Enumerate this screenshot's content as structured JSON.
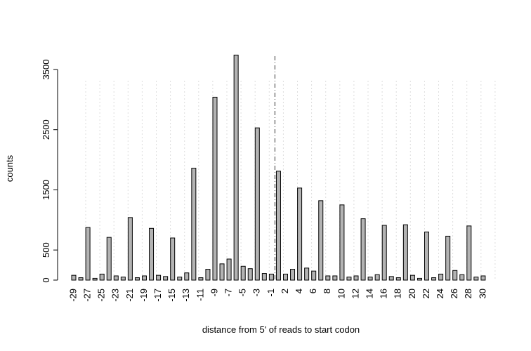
{
  "chart_data": {
    "type": "bar",
    "xlabel": "distance from 5' of reads to start codon",
    "ylabel": "counts",
    "categories": [
      "-29",
      null,
      "-27",
      null,
      "-25",
      null,
      "-23",
      null,
      "-21",
      null,
      "-19",
      null,
      "-17",
      null,
      "-15",
      null,
      "-13",
      null,
      "-11",
      null,
      "-9",
      null,
      "-7",
      null,
      "-5",
      null,
      "-3",
      null,
      "-1",
      null,
      "2",
      null,
      "4",
      null,
      "6",
      null,
      "8",
      null,
      "10",
      null,
      "12",
      null,
      "14",
      null,
      "16",
      null,
      "18",
      null,
      "20",
      null,
      "22",
      null,
      "24",
      null,
      "26",
      null,
      "28",
      null,
      "30"
    ],
    "values": [
      80,
      40,
      875,
      30,
      100,
      710,
      70,
      50,
      1040,
      40,
      70,
      860,
      80,
      60,
      700,
      50,
      120,
      1860,
      40,
      180,
      3040,
      270,
      350,
      3740,
      230,
      190,
      2530,
      110,
      100,
      1810,
      100,
      180,
      1530,
      200,
      150,
      1320,
      70,
      70,
      1250,
      50,
      70,
      1020,
      50,
      90,
      910,
      60,
      40,
      920,
      80,
      30,
      800,
      40,
      100,
      730,
      160,
      90,
      900,
      50,
      70
    ],
    "color": "#b3b3b3",
    "ylim": [
      0,
      3500
    ],
    "yticks": [
      0,
      500,
      1500,
      2500,
      3500
    ],
    "grid": true,
    "reference_line_after_index": 28
  }
}
